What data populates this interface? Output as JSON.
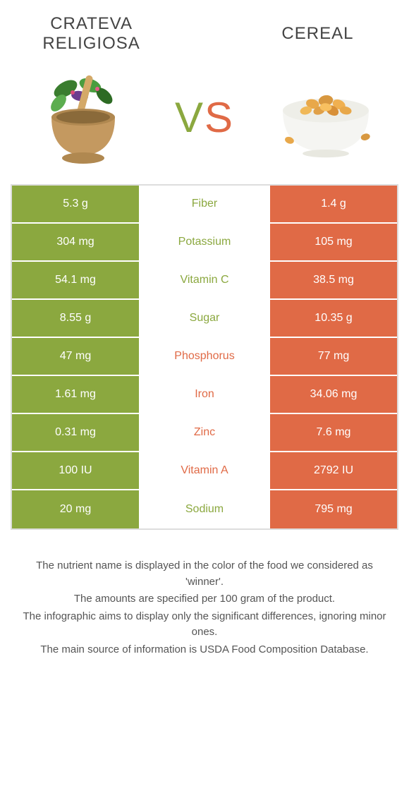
{
  "header": {
    "left_title": "CRATEVA RELIGIOSA",
    "right_title": "CEREAL",
    "vs_v": "V",
    "vs_s": "S"
  },
  "colors": {
    "left": "#8ba83f",
    "right": "#e06a46",
    "border": "#dddddd",
    "text": "#444444",
    "footer_text": "#555555"
  },
  "rows": [
    {
      "nutrient": "Fiber",
      "left": "5.3 g",
      "right": "1.4 g",
      "winner": "left"
    },
    {
      "nutrient": "Potassium",
      "left": "304 mg",
      "right": "105 mg",
      "winner": "left"
    },
    {
      "nutrient": "Vitamin C",
      "left": "54.1 mg",
      "right": "38.5 mg",
      "winner": "left"
    },
    {
      "nutrient": "Sugar",
      "left": "8.55 g",
      "right": "10.35 g",
      "winner": "left"
    },
    {
      "nutrient": "Phosphorus",
      "left": "47 mg",
      "right": "77 mg",
      "winner": "right"
    },
    {
      "nutrient": "Iron",
      "left": "1.61 mg",
      "right": "34.06 mg",
      "winner": "right"
    },
    {
      "nutrient": "Zinc",
      "left": "0.31 mg",
      "right": "7.6 mg",
      "winner": "right"
    },
    {
      "nutrient": "Vitamin A",
      "left": "100 IU",
      "right": "2792 IU",
      "winner": "right"
    },
    {
      "nutrient": "Sodium",
      "left": "20 mg",
      "right": "795 mg",
      "winner": "left"
    }
  ],
  "footer": {
    "line1": "The nutrient name is displayed in the color of the food we considered as 'winner'.",
    "line2": "The amounts are specified per 100 gram of the product.",
    "line3": "The infographic aims to display only the significant differences, ignoring minor ones.",
    "line4": "The main source of information is USDA Food Composition Database."
  }
}
